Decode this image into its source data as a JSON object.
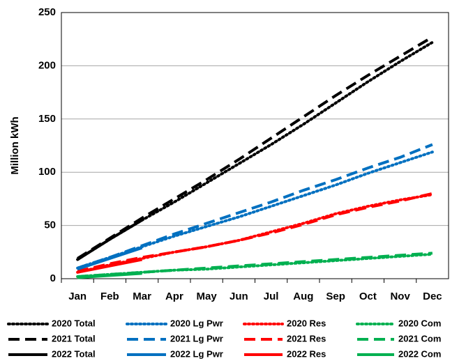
{
  "chart_data": {
    "type": "line",
    "ylabel": "Million kWh",
    "categories": [
      "Jan",
      "Feb",
      "Mar",
      "Apr",
      "May",
      "Jun",
      "Jul",
      "Aug",
      "Sep",
      "Oct",
      "Nov",
      "Dec"
    ],
    "ylim": [
      0,
      250
    ],
    "yticks": [
      0,
      50,
      100,
      150,
      200,
      250
    ],
    "grid": true,
    "series": [
      {
        "name": "2020 Total",
        "color": "#000000",
        "dash": "dot",
        "values": [
          18,
          37,
          55,
          72,
          90,
          108,
          126,
          145,
          165,
          185,
          204,
          222
        ]
      },
      {
        "name": "2020 Lg Pwr",
        "color": "#0070c0",
        "dash": "dot",
        "values": [
          10,
          20,
          30,
          40,
          49,
          58,
          68,
          78,
          88,
          99,
          109,
          119
        ]
      },
      {
        "name": "2020 Res",
        "color": "#ff0000",
        "dash": "dot",
        "values": [
          6,
          13,
          19,
          25,
          30,
          36,
          44,
          52,
          61,
          68,
          74,
          79
        ]
      },
      {
        "name": "2020 Com",
        "color": "#00b050",
        "dash": "dot",
        "values": [
          2,
          4,
          6,
          8,
          9,
          11,
          13,
          15,
          17,
          19,
          21,
          23
        ]
      },
      {
        "name": "2021 Total",
        "color": "#000000",
        "dash": "dash",
        "values": [
          19,
          38,
          57,
          75,
          93,
          112,
          132,
          152,
          172,
          191,
          209,
          227
        ]
      },
      {
        "name": "2021 Lg Pwr",
        "color": "#0070c0",
        "dash": "dash",
        "values": [
          10,
          20,
          31,
          42,
          52,
          62,
          72,
          83,
          93,
          104,
          114,
          126
        ]
      },
      {
        "name": "2021 Res",
        "color": "#ff0000",
        "dash": "dash",
        "values": [
          7,
          14,
          20,
          25,
          30,
          36,
          43,
          51,
          60,
          67,
          73,
          80
        ]
      },
      {
        "name": "2021 Com",
        "color": "#00b050",
        "dash": "dash",
        "values": [
          2,
          4,
          6,
          8,
          10,
          12,
          14,
          16,
          18,
          20,
          22,
          24
        ]
      },
      {
        "name": "2022 Total",
        "color": "#000000",
        "dash": "solid",
        "values": [
          18,
          37,
          55,
          null,
          null,
          null,
          null,
          null,
          null,
          null,
          null,
          null
        ]
      },
      {
        "name": "2022 Lg Pwr",
        "color": "#0070c0",
        "dash": "solid",
        "values": [
          9,
          19,
          29,
          null,
          null,
          null,
          null,
          null,
          null,
          null,
          null,
          null
        ]
      },
      {
        "name": "2022 Res",
        "color": "#ff0000",
        "dash": "solid",
        "values": [
          6,
          12,
          18,
          null,
          null,
          null,
          null,
          null,
          null,
          null,
          null,
          null
        ]
      },
      {
        "name": "2022 Com",
        "color": "#00b050",
        "dash": "solid",
        "values": [
          1,
          3,
          5,
          null,
          null,
          null,
          null,
          null,
          null,
          null,
          null,
          null
        ]
      }
    ]
  }
}
